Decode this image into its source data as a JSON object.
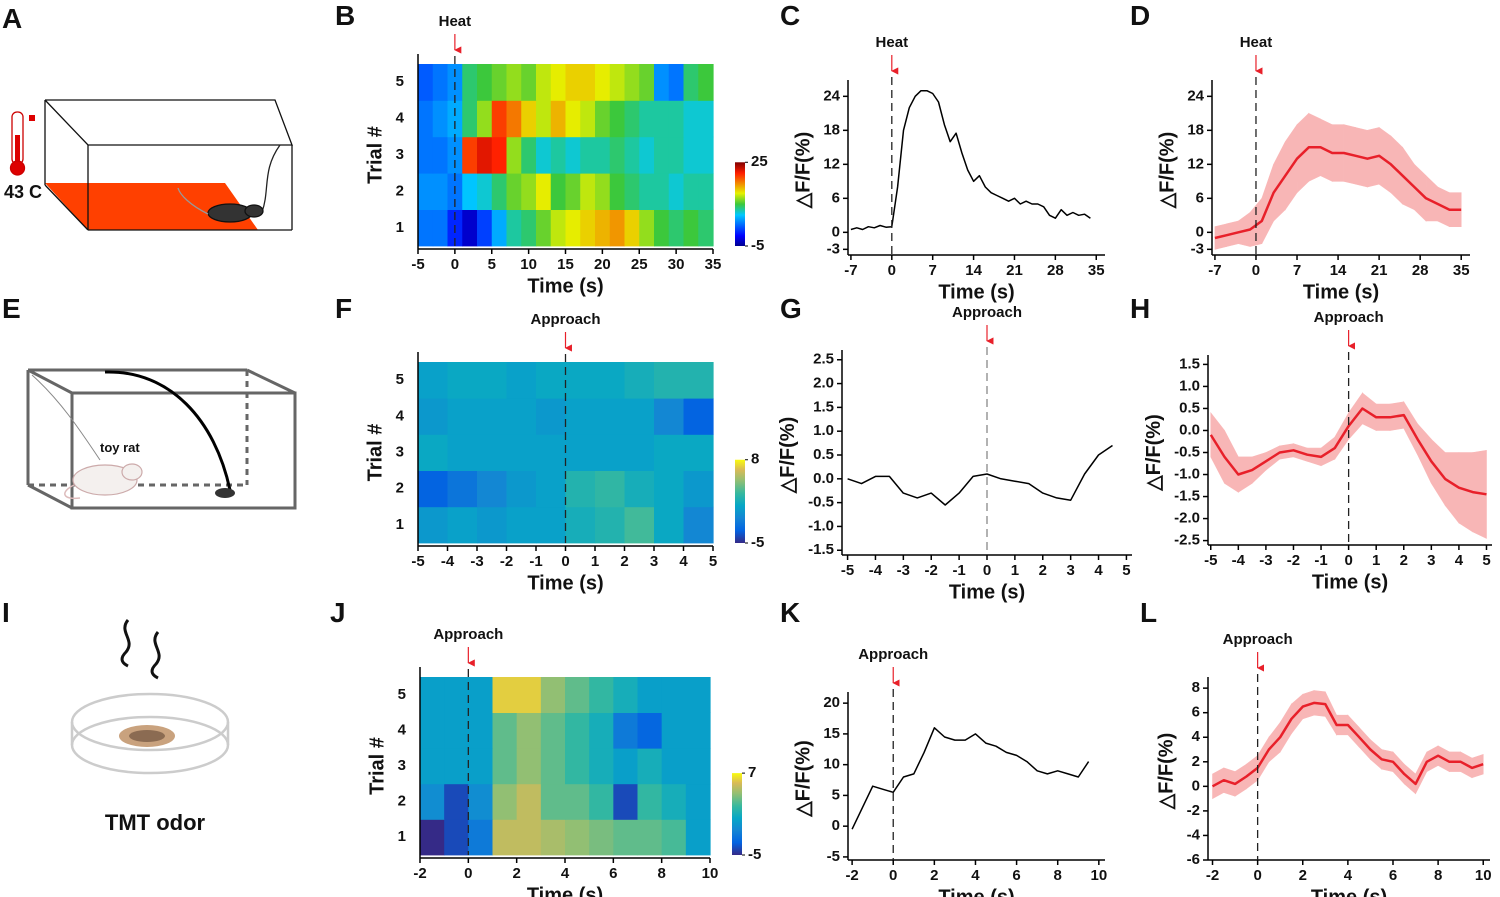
{
  "panel_labels": [
    "A",
    "B",
    "C",
    "D",
    "E",
    "F",
    "G",
    "H",
    "I",
    "J",
    "K",
    "L"
  ],
  "illustrations": {
    "temperature": "43 C",
    "toy": "toy rat",
    "odor": "TMT odor"
  },
  "chart_data": [
    {
      "type": "heatmap",
      "event": {
        "label": "Heat",
        "x": 0
      },
      "xlabel": "Time (s)",
      "ylabel": "Trial #",
      "xlim": [
        -5,
        35
      ],
      "xticks": [
        -5,
        0,
        5,
        10,
        15,
        20,
        25,
        30,
        35
      ],
      "categories": [
        1,
        2,
        3,
        4,
        5
      ],
      "x": [
        -4,
        -2,
        0,
        2,
        4,
        6,
        8,
        10,
        12,
        14,
        16,
        18,
        20,
        22,
        24,
        26,
        28,
        30,
        32,
        34
      ],
      "values": [
        [
          3,
          3,
          0,
          -3,
          1,
          5,
          8,
          9,
          11,
          13,
          14,
          15,
          16,
          17,
          15,
          12,
          10,
          9,
          10,
          9
        ],
        [
          4,
          4,
          3,
          6,
          7,
          9,
          11,
          12,
          14,
          10,
          11,
          13,
          12,
          10,
          9,
          8,
          8,
          7,
          8,
          8
        ],
        [
          3,
          3,
          4,
          20,
          22,
          21,
          12,
          9,
          7,
          8,
          7,
          8,
          8,
          9,
          8,
          7,
          8,
          8,
          7,
          7
        ],
        [
          3,
          4,
          5,
          9,
          12,
          20,
          18,
          15,
          13,
          16,
          14,
          13,
          11,
          10,
          9,
          8,
          8,
          8,
          7,
          7
        ],
        [
          2,
          3,
          4,
          9,
          10,
          11,
          12,
          11,
          13,
          14,
          15,
          15,
          14,
          13,
          12,
          11,
          4,
          3,
          9,
          10
        ]
      ],
      "colormap": "jet",
      "clim": [
        -5,
        25
      ],
      "cticks": [
        -5,
        25
      ]
    },
    {
      "type": "line",
      "event": {
        "label": "Heat",
        "x": 0
      },
      "xlabel": "Time (s)",
      "ylabel": "△F/F(%)",
      "xlim": [
        -7.5,
        36.5
      ],
      "xticks": [
        -7,
        0,
        7,
        14,
        21,
        28,
        35
      ],
      "ylim": [
        -4,
        26
      ],
      "yticks": [
        -3,
        0,
        6,
        12,
        18,
        24
      ],
      "x": [
        -7,
        -6,
        -5,
        -4,
        -3,
        -2,
        -1,
        0,
        1,
        2,
        3,
        4,
        5,
        6,
        7,
        8,
        9,
        10,
        11,
        12,
        13,
        14,
        15,
        16,
        17,
        18,
        19,
        20,
        21,
        22,
        23,
        24,
        25,
        26,
        27,
        28,
        29,
        30,
        31,
        32,
        33,
        34
      ],
      "values": [
        0.5,
        0.8,
        0.5,
        1,
        0.8,
        1.2,
        0.9,
        1,
        8,
        18,
        22,
        24,
        25,
        25,
        24.5,
        23,
        19,
        16,
        17.5,
        14,
        11,
        9,
        10,
        8,
        7,
        6.5,
        6,
        5.5,
        6,
        5,
        5.5,
        5,
        5,
        4.5,
        3,
        2.5,
        4,
        3,
        3.5,
        3,
        3.2,
        2.5
      ],
      "color": "#000000"
    },
    {
      "type": "line",
      "event": {
        "label": "Heat",
        "x": 0
      },
      "xlabel": "Time (s)",
      "ylabel": "△F/F(%)",
      "xlim": [
        -7.5,
        36.5
      ],
      "xticks": [
        -7,
        0,
        7,
        14,
        21,
        28,
        35
      ],
      "ylim": [
        -4,
        26
      ],
      "yticks": [
        -3,
        0,
        6,
        12,
        18,
        24
      ],
      "x": [
        -7,
        -5,
        -3,
        -1,
        1,
        3,
        5,
        7,
        9,
        11,
        13,
        15,
        17,
        19,
        21,
        23,
        25,
        27,
        29,
        31,
        33,
        35
      ],
      "values": [
        -1,
        -0.5,
        0,
        0.5,
        2,
        7,
        10,
        13,
        15,
        15,
        14,
        14,
        13.5,
        13,
        13.5,
        12,
        10,
        8,
        6,
        5,
        4,
        4
      ],
      "error": [
        2,
        2,
        2,
        3,
        4,
        5,
        6,
        6,
        6,
        5,
        5,
        5,
        5,
        5,
        5,
        5,
        5,
        4,
        4,
        3,
        3,
        3
      ],
      "color": "#e8202a",
      "band_color": "#f47c7c"
    },
    {
      "type": "heatmap",
      "event": {
        "label": "Approach",
        "x": 0
      },
      "xlabel": "Time (s)",
      "ylabel": "Trial #",
      "xlim": [
        -5,
        5
      ],
      "xticks": [
        -5,
        -4,
        -3,
        -2,
        -1,
        0,
        1,
        2,
        3,
        4,
        5
      ],
      "categories": [
        1,
        2,
        3,
        4,
        5
      ],
      "x": [
        -4.5,
        -3.5,
        -2.5,
        -1.5,
        -0.5,
        0.5,
        1.5,
        2.5,
        3.5,
        4.5
      ],
      "values": [
        [
          0,
          0.5,
          0,
          0.5,
          0.5,
          1.5,
          2,
          3,
          1,
          -1
        ],
        [
          -3,
          -2,
          -1,
          0,
          0.5,
          2,
          2.5,
          1.5,
          1,
          0
        ],
        [
          1,
          0.5,
          0.5,
          0.5,
          0.5,
          0.5,
          0.5,
          0.5,
          1,
          1
        ],
        [
          0,
          0.5,
          0.5,
          0.5,
          0,
          0.5,
          0.5,
          0.5,
          -1,
          -3
        ],
        [
          0.5,
          1,
          1,
          0.5,
          1,
          1,
          1,
          1.5,
          2,
          2
        ]
      ],
      "colormap": "parula",
      "clim": [
        -5,
        8
      ],
      "cticks": [
        -5,
        8
      ]
    },
    {
      "type": "line",
      "event": {
        "label": "Approach",
        "x": 0
      },
      "xlabel": "Time (s)",
      "ylabel": "△F/F(%)",
      "xlim": [
        -5.2,
        5.2
      ],
      "xticks": [
        -5,
        -4,
        -3,
        -2,
        -1,
        0,
        1,
        2,
        3,
        4,
        5
      ],
      "ylim": [
        -1.6,
        2.6
      ],
      "yticks": [
        -1.5,
        {
          "value": -1,
          "label": "-1.0"
        },
        -0.5,
        {
          "value": 0,
          "label": "0.0"
        },
        0.5,
        {
          "value": 1,
          "label": "1.0"
        },
        1.5,
        {
          "value": 2,
          "label": "2.0"
        },
        2.5
      ],
      "x": [
        -5,
        -4.5,
        -4,
        -3.5,
        -3,
        -2.5,
        -2,
        -1.5,
        -1,
        -0.5,
        0,
        0.5,
        1,
        1.5,
        2,
        2.5,
        3,
        3.5,
        4,
        4.5
      ],
      "values": [
        0,
        -0.1,
        0.05,
        0.05,
        -0.3,
        -0.4,
        -0.3,
        -0.55,
        -0.3,
        0.05,
        0.1,
        0,
        -0.05,
        -0.1,
        -0.3,
        -0.4,
        -0.45,
        0.1,
        0.5,
        0.7
      ],
      "color": "#000000"
    },
    {
      "type": "line",
      "event": {
        "label": "Approach",
        "x": 0
      },
      "xlabel": "Time (s)",
      "ylabel": "△F/F(%)",
      "xlim": [
        -5.1,
        5.2
      ],
      "xticks": [
        -5,
        -4,
        -3,
        -2,
        -1,
        0,
        1,
        2,
        3,
        4,
        5
      ],
      "ylim": [
        -2.6,
        1.6
      ],
      "yticks": [
        -2.5,
        {
          "value": -2,
          "label": "-2.0"
        },
        -1.5,
        {
          "value": -1,
          "label": "-1.0"
        },
        -0.5,
        {
          "value": 0,
          "label": "0.0"
        },
        0.5,
        {
          "value": 1,
          "label": "1.0"
        },
        1.5
      ],
      "x": [
        -5,
        -4.5,
        -4,
        -3.5,
        -3,
        -2.5,
        -2,
        -1.5,
        -1,
        -0.5,
        0,
        0.5,
        1,
        1.5,
        2,
        2.5,
        3,
        3.5,
        4,
        4.5,
        5
      ],
      "values": [
        -0.1,
        -0.6,
        -1,
        -0.9,
        -0.7,
        -0.5,
        -0.45,
        -0.55,
        -0.6,
        -0.4,
        0.1,
        0.5,
        0.3,
        0.3,
        0.35,
        -0.2,
        -0.7,
        -1.1,
        -1.3,
        -1.4,
        -1.45
      ],
      "error": [
        0.5,
        0.6,
        0.4,
        0.3,
        0.2,
        0.15,
        0.15,
        0.15,
        0.2,
        0.25,
        0.3,
        0.35,
        0.3,
        0.3,
        0.3,
        0.35,
        0.5,
        0.6,
        0.8,
        0.9,
        1
      ],
      "color": "#e8202a",
      "band_color": "#f47c7c"
    },
    {
      "type": "heatmap",
      "event": {
        "label": "Approach",
        "x": 0
      },
      "xlabel": "Time (s)",
      "ylabel": "Trial #",
      "xlim": [
        -2,
        10
      ],
      "xticks": [
        -2,
        0,
        2,
        4,
        6,
        8,
        10
      ],
      "categories": [
        1,
        2,
        3,
        4,
        5
      ],
      "x": [
        -1.5,
        -0.5,
        0.5,
        1.5,
        2.5,
        3.5,
        4.5,
        5.5,
        6.5,
        7.5,
        8.5,
        9.5
      ],
      "values": [
        [
          -5,
          -4,
          -2,
          5,
          5,
          4.5,
          4,
          3.5,
          3,
          3,
          2.5,
          0
        ],
        [
          -1,
          -4,
          -1,
          4,
          5,
          3,
          3,
          2,
          -4,
          2,
          1,
          0
        ],
        [
          0,
          0,
          0,
          3,
          4,
          3,
          2,
          1,
          0,
          1,
          0,
          0
        ],
        [
          0,
          0,
          0,
          3,
          4,
          3,
          2,
          1,
          -2,
          -3,
          0,
          0
        ],
        [
          0,
          0,
          0,
          6,
          6,
          4,
          3,
          2,
          1,
          0,
          0,
          0
        ]
      ],
      "colormap": "parula",
      "clim": [
        -5,
        7
      ],
      "cticks": [
        -5,
        7
      ]
    },
    {
      "type": "line",
      "event": {
        "label": "Approach",
        "x": 0
      },
      "xlabel": "Time (s)",
      "ylabel": "△F/F(%)",
      "xlim": [
        -2.2,
        10.3
      ],
      "xticks": [
        -2,
        0,
        2,
        4,
        6,
        8,
        10
      ],
      "ylim": [
        -5.5,
        21
      ],
      "yticks": [
        -5,
        0,
        5,
        10,
        15,
        20
      ],
      "x": [
        -2,
        -1.5,
        -1,
        -0.5,
        0,
        0.5,
        1,
        1.5,
        2,
        2.5,
        3,
        3.5,
        4,
        4.5,
        5,
        5.5,
        6,
        6.5,
        7,
        7.5,
        8,
        8.5,
        9,
        9.5
      ],
      "values": [
        -0.5,
        3,
        6.5,
        6,
        5.5,
        8,
        8.5,
        12,
        16,
        14.5,
        14,
        14,
        15,
        13.5,
        13,
        12,
        11.5,
        10.5,
        9,
        8.5,
        9,
        8.5,
        8,
        10.5
      ],
      "color": "#000000"
    },
    {
      "type": "line",
      "event": {
        "label": "Approach",
        "x": 0
      },
      "xlabel": "Time (s)",
      "ylabel": "△F/F(%)",
      "xlim": [
        -2.2,
        10.3
      ],
      "xticks": [
        -2,
        0,
        2,
        4,
        6,
        8,
        10
      ],
      "ylim": [
        -6,
        8.5
      ],
      "yticks": [
        -6,
        -4,
        -2,
        0,
        2,
        4,
        6,
        8
      ],
      "x": [
        -2,
        -1.5,
        -1,
        -0.5,
        0,
        0.5,
        1,
        1.5,
        2,
        2.5,
        3,
        3.5,
        4,
        4.5,
        5,
        5.5,
        6,
        6.5,
        7,
        7.5,
        8,
        8.5,
        9,
        9.5,
        10
      ],
      "values": [
        0,
        0.5,
        0.2,
        0.8,
        1.5,
        3,
        4,
        5.5,
        6.5,
        6.8,
        6.7,
        5,
        5,
        4,
        3,
        2.2,
        2,
        1,
        0.2,
        2,
        2.5,
        2,
        2,
        1.5,
        1.8
      ],
      "error": [
        1,
        1,
        1,
        1,
        1,
        1,
        1.2,
        1.2,
        1,
        1,
        1,
        0.8,
        0.8,
        0.8,
        0.8,
        0.8,
        0.8,
        0.8,
        0.8,
        0.8,
        0.8,
        0.8,
        0.8,
        0.8,
        0.8
      ],
      "color": "#e8202a",
      "band_color": "#f47c7c"
    }
  ]
}
